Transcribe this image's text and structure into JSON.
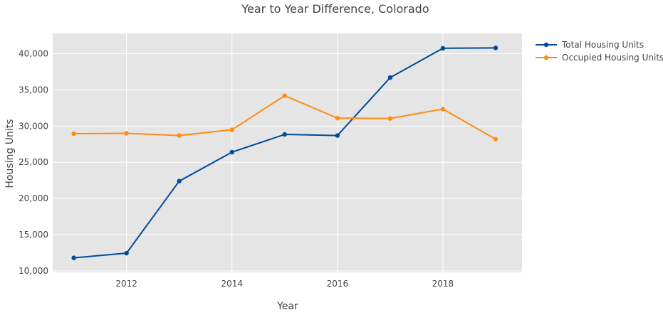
{
  "chart_data": {
    "type": "line",
    "title": "Year to Year Difference, Colorado",
    "xlabel": "Year",
    "ylabel": "Housing Units",
    "xlim": [
      2010.6,
      2019.5
    ],
    "ylim": [
      9800,
      42800
    ],
    "xticks": [
      2012,
      2014,
      2016,
      2018
    ],
    "yticks": [
      10000,
      15000,
      20000,
      25000,
      30000,
      35000,
      40000
    ],
    "ytick_labels": [
      "10,000",
      "15,000",
      "20,000",
      "25,000",
      "30,000",
      "35,000",
      "40,000"
    ],
    "grid": true,
    "legend_position": "top-right",
    "x": [
      2011,
      2012,
      2013,
      2014,
      2015,
      2016,
      2017,
      2018,
      2019
    ],
    "series": [
      {
        "name": "Total Housing Units",
        "color": "#004b98",
        "values": [
          11800,
          12450,
          22400,
          26400,
          28850,
          28700,
          36700,
          40750,
          40800
        ]
      },
      {
        "name": "Occupied Housing Units",
        "color": "#ff8c14",
        "values": [
          28950,
          29000,
          28700,
          29500,
          34200,
          31100,
          31050,
          32350,
          28200
        ]
      }
    ]
  }
}
